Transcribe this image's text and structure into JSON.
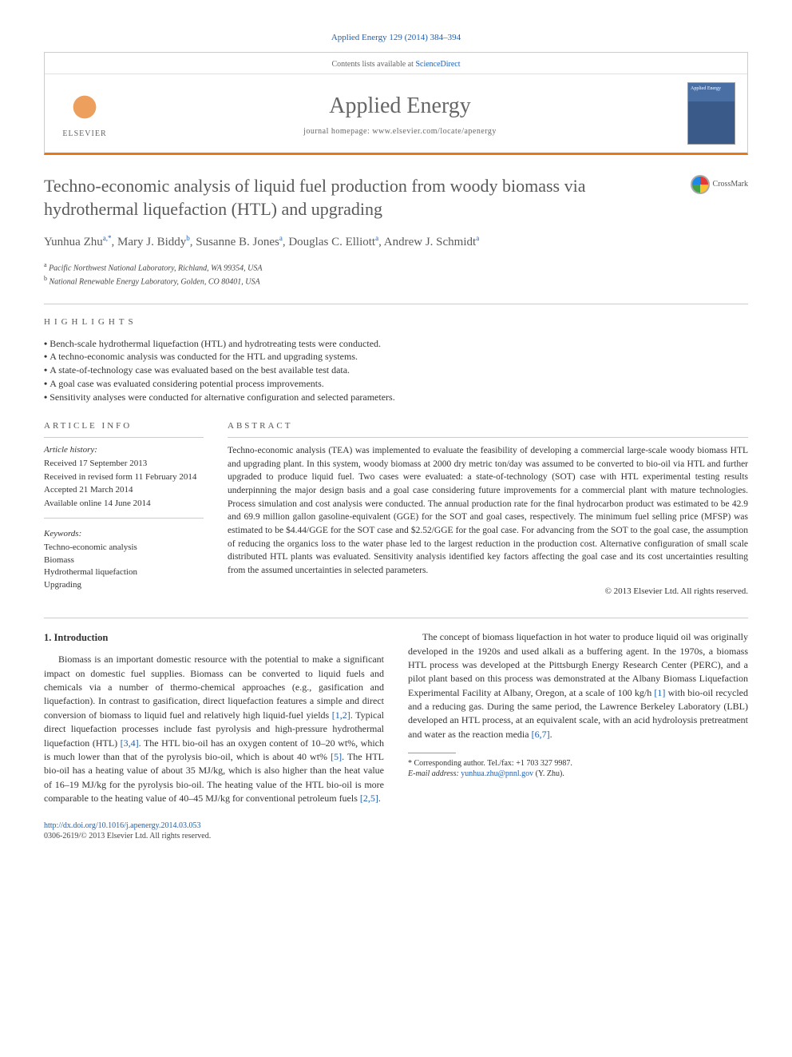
{
  "citation": "Applied Energy 129 (2014) 384–394",
  "header": {
    "contents_line_prefix": "Contents lists available at ",
    "contents_link": "ScienceDirect",
    "journal_name": "Applied Energy",
    "homepage_prefix": "journal homepage: ",
    "homepage_url": "www.elsevier.com/locate/apenergy",
    "publisher": "ELSEVIER",
    "cover_label": "Applied Energy"
  },
  "crossmark_label": "CrossMark",
  "title": "Techno-economic analysis of liquid fuel production from woody biomass via hydrothermal liquefaction (HTL) and upgrading",
  "authors_html": "Yunhua Zhu",
  "author_list": [
    {
      "name": "Yunhua Zhu",
      "sup": "a,*"
    },
    {
      "name": "Mary J. Biddy",
      "sup": "b"
    },
    {
      "name": "Susanne B. Jones",
      "sup": "a"
    },
    {
      "name": "Douglas C. Elliott",
      "sup": "a"
    },
    {
      "name": "Andrew J. Schmidt",
      "sup": "a"
    }
  ],
  "affiliations": [
    {
      "sup": "a",
      "text": "Pacific Northwest National Laboratory, Richland, WA 99354, USA"
    },
    {
      "sup": "b",
      "text": "National Renewable Energy Laboratory, Golden, CO 80401, USA"
    }
  ],
  "highlights_label": "HIGHLIGHTS",
  "highlights": [
    "Bench-scale hydrothermal liquefaction (HTL) and hydrotreating tests were conducted.",
    "A techno-economic analysis was conducted for the HTL and upgrading systems.",
    "A state-of-technology case was evaluated based on the best available test data.",
    "A goal case was evaluated considering potential process improvements.",
    "Sensitivity analyses were conducted for alternative configuration and selected parameters."
  ],
  "article_info_label": "ARTICLE INFO",
  "history_label": "Article history:",
  "history": [
    "Received 17 September 2013",
    "Received in revised form 11 February 2014",
    "Accepted 21 March 2014",
    "Available online 14 June 2014"
  ],
  "keywords_label": "Keywords:",
  "keywords": [
    "Techno-economic analysis",
    "Biomass",
    "Hydrothermal liquefaction",
    "Upgrading"
  ],
  "abstract_label": "ABSTRACT",
  "abstract_text": "Techno-economic analysis (TEA) was implemented to evaluate the feasibility of developing a commercial large-scale woody biomass HTL and upgrading plant. In this system, woody biomass at 2000 dry metric ton/day was assumed to be converted to bio-oil via HTL and further upgraded to produce liquid fuel. Two cases were evaluated: a state-of-technology (SOT) case with HTL experimental testing results underpinning the major design basis and a goal case considering future improvements for a commercial plant with mature technologies. Process simulation and cost analysis were conducted. The annual production rate for the final hydrocarbon product was estimated to be 42.9 and 69.9 million gallon gasoline-equivalent (GGE) for the SOT and goal cases, respectively. The minimum fuel selling price (MFSP) was estimated to be $4.44/GGE for the SOT case and $2.52/GGE for the goal case. For advancing from the SOT to the goal case, the assumption of reducing the organics loss to the water phase led to the largest reduction in the production cost. Alternative configuration of small scale distributed HTL plants was evaluated. Sensitivity analysis identified key factors affecting the goal case and its cost uncertainties resulting from the assumed uncertainties in selected parameters.",
  "copyright": "© 2013 Elsevier Ltd. All rights reserved.",
  "section1_heading": "1. Introduction",
  "para1": "Biomass is an important domestic resource with the potential to make a significant impact on domestic fuel supplies. Biomass can be converted to liquid fuels and chemicals via a number of thermo-chemical approaches (e.g., gasification and liquefaction). In contrast to gasification, direct liquefaction features a simple and direct conversion of biomass to liquid fuel and relatively high liquid-fuel yields ",
  "para1_ref1": "[1,2]",
  "para1b": ". Typical direct liquefaction processes include fast pyrolysis and high-pressure hydrothermal liquefaction (HTL) ",
  "para1_ref2": "[3,4]",
  "para1c": ". The HTL bio-oil has an oxygen content of 10–20 wt%, which is much lower than that of the pyrolysis bio-oil, which is",
  "para2a": "about 40 wt% ",
  "para2_ref1": "[5]",
  "para2b": ". The HTL bio-oil has a heating value of about 35 MJ/kg, which is also higher than the heat value of 16–19 MJ/kg for the pyrolysis bio-oil. The heating value of the HTL bio-oil is more comparable to the heating value of 40–45 MJ/kg for conventional petroleum fuels ",
  "para2_ref2": "[2,5]",
  "para2c": ".",
  "para3a": "The concept of biomass liquefaction in hot water to produce liquid oil was originally developed in the 1920s and used alkali as a buffering agent. In the 1970s, a biomass HTL process was developed at the Pittsburgh Energy Research Center (PERC), and a pilot plant based on this process was demonstrated at the Albany Biomass Liquefaction Experimental Facility at Albany, Oregon, at a scale of 100 kg/h ",
  "para3_ref1": "[1]",
  "para3b": " with bio-oil recycled and a reducing gas. During the same period, the Lawrence Berkeley Laboratory (LBL) developed an HTL process, at an equivalent scale, with an acid hydroloysis pretreatment and water as the reaction media ",
  "para3_ref2": "[6,7]",
  "para3c": ".",
  "footnote": {
    "corr": "* Corresponding author. Tel./fax: +1 703 327 9987.",
    "email_label": "E-mail address: ",
    "email": "yunhua.zhu@pnnl.gov",
    "email_suffix": " (Y. Zhu)."
  },
  "footer": {
    "doi": "http://dx.doi.org/10.1016/j.apenergy.2014.03.053",
    "issn_line": "0306-2619/© 2013 Elsevier Ltd. All rights reserved."
  }
}
